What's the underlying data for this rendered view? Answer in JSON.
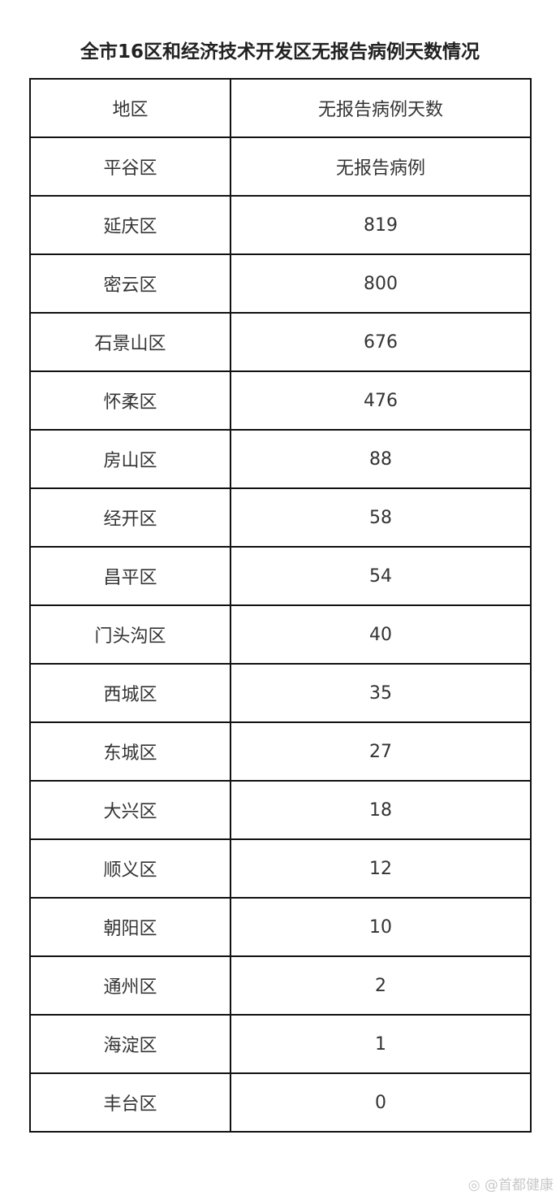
{
  "title": "全市16区和经济技术开发区无报告病例天数情况",
  "table": {
    "headers": [
      "地区",
      "无报告病例天数"
    ],
    "rows": [
      [
        "平谷区",
        "无报告病例"
      ],
      [
        "延庆区",
        "819"
      ],
      [
        "密云区",
        "800"
      ],
      [
        "石景山区",
        "676"
      ],
      [
        "怀柔区",
        "476"
      ],
      [
        "房山区",
        "88"
      ],
      [
        "经开区",
        "58"
      ],
      [
        "昌平区",
        "54"
      ],
      [
        "门头沟区",
        "40"
      ],
      [
        "西城区",
        "35"
      ],
      [
        "东城区",
        "27"
      ],
      [
        "大兴区",
        "18"
      ],
      [
        "顺义区",
        "12"
      ],
      [
        "朝阳区",
        "10"
      ],
      [
        "通州区",
        "2"
      ],
      [
        "海淀区",
        "1"
      ],
      [
        "丰台区",
        "0"
      ]
    ]
  },
  "watermark": "@首都健康"
}
